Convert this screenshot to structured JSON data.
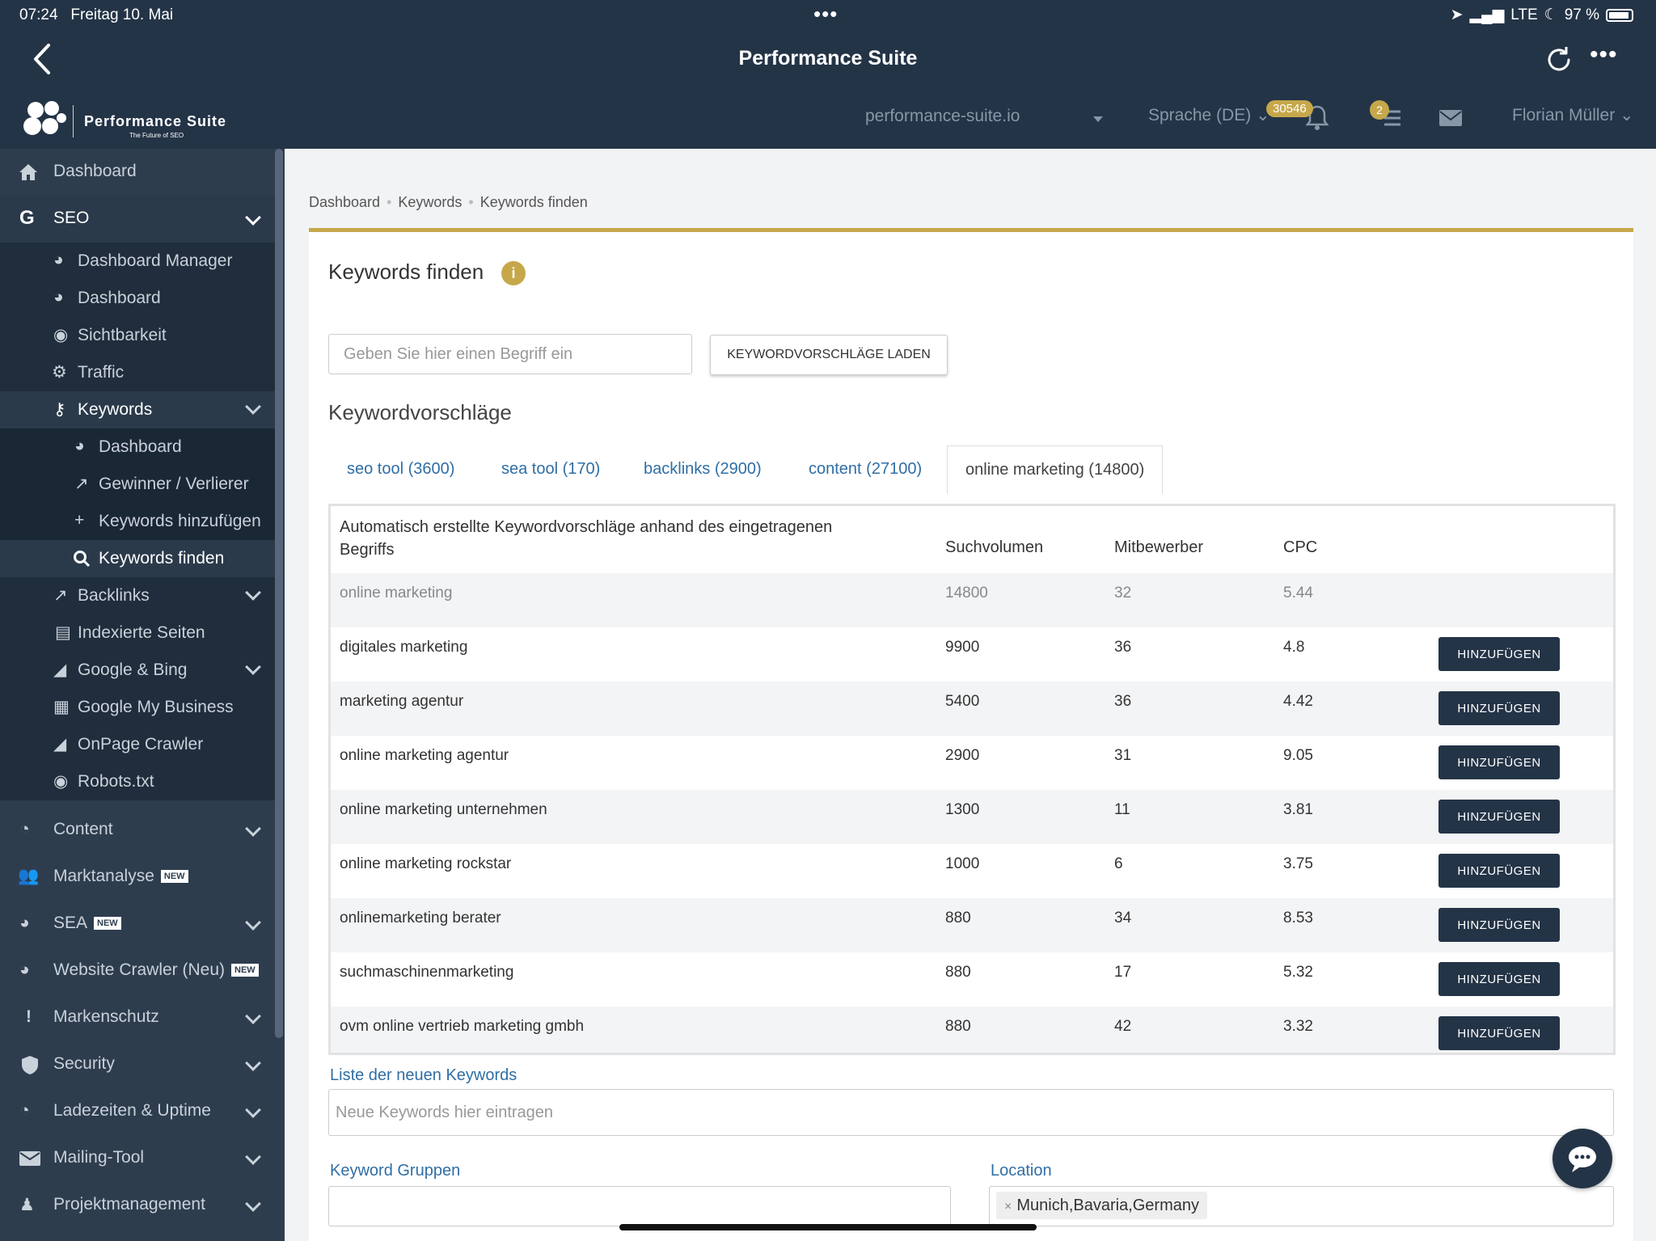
{
  "status": {
    "time": "07:24",
    "date": "Freitag 10. Mai",
    "network": "LTE",
    "battery": "97 %"
  },
  "app": {
    "title": "Performance Suite"
  },
  "header": {
    "logo_name": "Performance Suite",
    "logo_tagline": "The Future of SEO",
    "domain": "performance-suite.io",
    "language": "Sprache (DE)",
    "notification_badge": "30546",
    "tasks_badge": "2",
    "user": "Florian Müller"
  },
  "sidebar": {
    "items": [
      {
        "label": "Dashboard",
        "icon": "home-icon"
      },
      {
        "label": "SEO",
        "icon": "google-icon"
      },
      {
        "label": "Dashboard Manager",
        "icon": "dashboard-icon"
      },
      {
        "label": "Dashboard",
        "icon": "dashboard-icon"
      },
      {
        "label": "Sichtbarkeit",
        "icon": "eye-icon"
      },
      {
        "label": "Traffic",
        "icon": "gears-icon"
      },
      {
        "label": "Keywords",
        "icon": "key-icon"
      },
      {
        "label": "Dashboard",
        "icon": "dashboard-icon"
      },
      {
        "label": "Gewinner / Verlierer",
        "icon": "external-link-icon"
      },
      {
        "label": "Keywords hinzufügen",
        "icon": "plus-icon"
      },
      {
        "label": "Keywords finden",
        "icon": "search-icon"
      },
      {
        "label": "Backlinks",
        "icon": "external-link-icon"
      },
      {
        "label": "Indexierte Seiten",
        "icon": "file-icon"
      },
      {
        "label": "Google & Bing",
        "icon": "area-chart-icon"
      },
      {
        "label": "Google My Business",
        "icon": "store-icon"
      },
      {
        "label": "OnPage Crawler",
        "icon": "area-chart-icon"
      },
      {
        "label": "Robots.txt",
        "icon": "eye-icon"
      },
      {
        "label": "Content",
        "icon": "clock-icon"
      },
      {
        "label": "Marktanalyse",
        "icon": "users-icon",
        "tag": "NEW"
      },
      {
        "label": "SEA",
        "icon": "pie-chart-icon",
        "tag": "NEW"
      },
      {
        "label": "Website Crawler (Neu)",
        "icon": "pie-chart-icon",
        "tag": "NEW"
      },
      {
        "label": "Markenschutz",
        "icon": "exclamation-icon"
      },
      {
        "label": "Security",
        "icon": "shield-icon"
      },
      {
        "label": "Ladezeiten & Uptime",
        "icon": "clock-icon"
      },
      {
        "label": "Mailing-Tool",
        "icon": "envelope-icon"
      },
      {
        "label": "Projektmanagement",
        "icon": "people-icon"
      }
    ]
  },
  "breadcrumb": [
    "Dashboard",
    "Keywords",
    "Keywords finden"
  ],
  "page": {
    "title": "Keywords finden",
    "search_placeholder": "Geben Sie hier einen Begriff ein",
    "load_button": "KEYWORDVORSCHLÄGE LADEN",
    "suggestions_title": "Keywordvorschläge",
    "tabs": [
      "seo tool (3600)",
      "sea tool (170)",
      "backlinks (2900)",
      "content (27100)",
      "online marketing (14800)"
    ],
    "active_tab": 4
  },
  "table": {
    "headers": {
      "keyword": "Automatisch erstellte Keywordvorschläge anhand des eingetragenen Begriffs",
      "volume": "Suchvolumen",
      "competitors": "Mitbewerber",
      "cpc": "CPC"
    },
    "add_label": "HINZUFÜGEN",
    "rows": [
      {
        "keyword": "online marketing",
        "volume": "14800",
        "competitors": "32",
        "cpc": "5.44"
      },
      {
        "keyword": "digitales marketing",
        "volume": "9900",
        "competitors": "36",
        "cpc": "4.8"
      },
      {
        "keyword": "marketing agentur",
        "volume": "5400",
        "competitors": "36",
        "cpc": "4.42"
      },
      {
        "keyword": "online marketing agentur",
        "volume": "2900",
        "competitors": "31",
        "cpc": "9.05"
      },
      {
        "keyword": "online marketing unternehmen",
        "volume": "1300",
        "competitors": "11",
        "cpc": "3.81"
      },
      {
        "keyword": "online marketing rockstar",
        "volume": "1000",
        "competitors": "6",
        "cpc": "3.75"
      },
      {
        "keyword": "onlinemarketing berater",
        "volume": "880",
        "competitors": "34",
        "cpc": "8.53"
      },
      {
        "keyword": "suchmaschinenmarketing",
        "volume": "880",
        "competitors": "17",
        "cpc": "5.32"
      },
      {
        "keyword": "ovm online vertrieb marketing gmbh",
        "volume": "880",
        "competitors": "42",
        "cpc": "3.32"
      }
    ]
  },
  "form": {
    "new_keywords_label": "Liste der neuen Keywords",
    "new_keywords_placeholder": "Neue Keywords hier eintragen",
    "groups_label": "Keyword Gruppen",
    "location_label": "Location",
    "location_value": "Munich,Bavaria,Germany"
  },
  "colors": {
    "accent": "#c6a84b",
    "dark": "#243447",
    "sidebar": "#2e3d4e",
    "link": "#2f6ea5"
  }
}
